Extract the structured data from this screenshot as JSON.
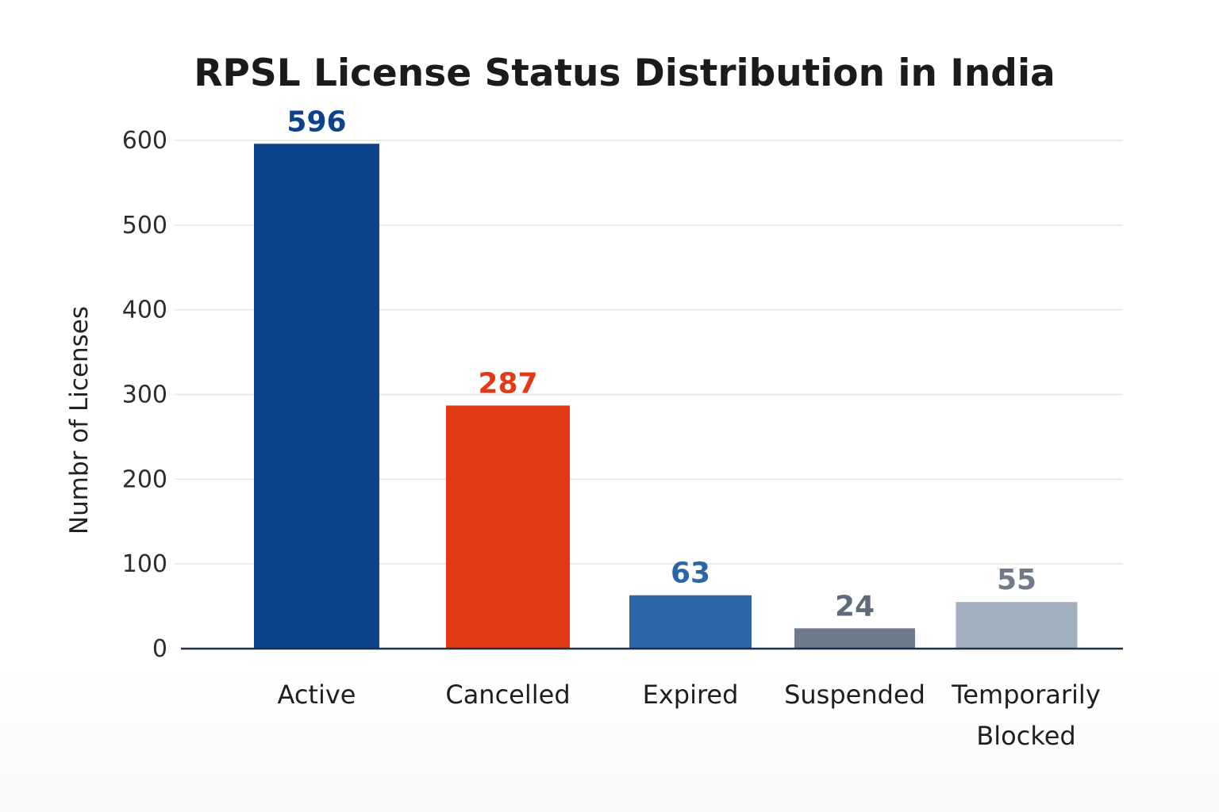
{
  "chart_data": {
    "type": "bar",
    "title": "RPSL License Status Distribution in India",
    "xlabel": "",
    "ylabel": "Numbr of Licenses",
    "categories": [
      "Active",
      "Cancelled",
      "Expired",
      "Suspended",
      "Temporarily Blocked"
    ],
    "category_lines": [
      [
        "Active"
      ],
      [
        "Cancelled"
      ],
      [
        "Expired"
      ],
      [
        "Suspended"
      ],
      [
        "Temporarily",
        "Blocked"
      ]
    ],
    "values": [
      596,
      287,
      63,
      24,
      55
    ],
    "value_labels": [
      "596",
      "287",
      "63",
      "24",
      "55"
    ],
    "bar_colors": [
      "#0c448a",
      "#e03b15",
      "#2b67a8",
      "#6c7a8c",
      "#a2afbf"
    ],
    "label_colors": [
      "#0c448a",
      "#e03b15",
      "#2b67a8",
      "#5e6b7d",
      "#6f7b8b"
    ],
    "ylim": [
      0,
      600
    ],
    "yticks": [
      0,
      100,
      200,
      300,
      400,
      500,
      600
    ],
    "grid": true,
    "legend": "none"
  }
}
